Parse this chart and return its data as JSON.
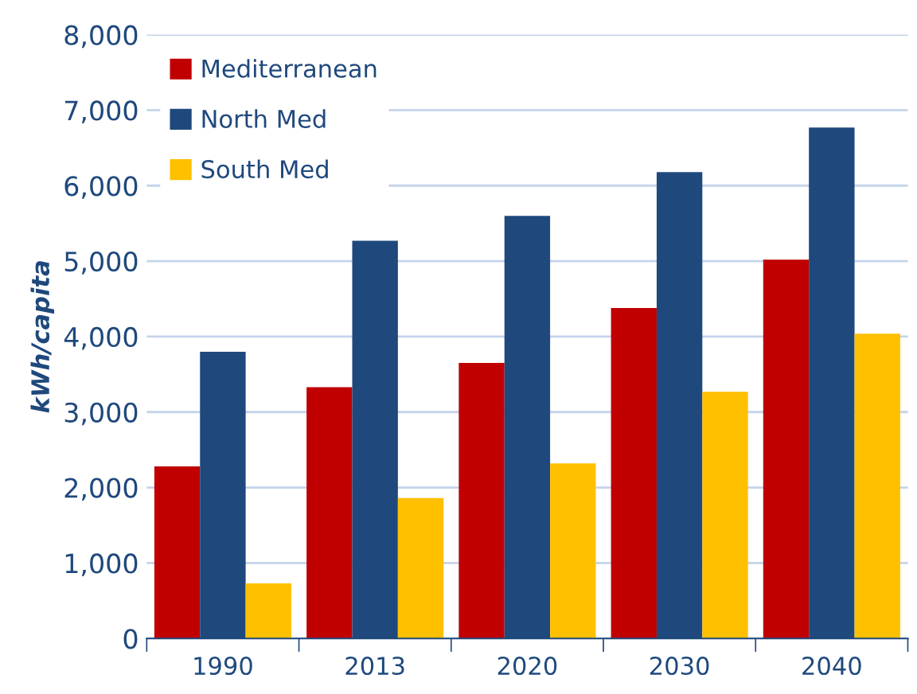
{
  "chart_data": {
    "type": "bar",
    "ylabel": "kWh/capita",
    "categories": [
      "1990",
      "2013",
      "2020",
      "2030",
      "2040"
    ],
    "series": [
      {
        "name": "Mediterranean",
        "color": "#c00000",
        "values": [
          2280,
          3330,
          3650,
          4380,
          5020
        ]
      },
      {
        "name": "North Med",
        "color": "#1f497d",
        "values": [
          3800,
          5270,
          5600,
          6180,
          6770
        ]
      },
      {
        "name": "South Med",
        "color": "#ffc000",
        "values": [
          730,
          1860,
          2320,
          3270,
          4040
        ]
      }
    ],
    "ylim": [
      0,
      8000
    ],
    "yticks": [
      {
        "value": 0,
        "label": "0"
      },
      {
        "value": 1000,
        "label": "1,000"
      },
      {
        "value": 2000,
        "label": "2,000"
      },
      {
        "value": 3000,
        "label": "3,000"
      },
      {
        "value": 4000,
        "label": "4,000"
      },
      {
        "value": 5000,
        "label": "5,000"
      },
      {
        "value": 6000,
        "label": "6,000"
      },
      {
        "value": 7000,
        "label": "7,000"
      },
      {
        "value": 8000,
        "label": "8,000"
      }
    ],
    "grid": "y",
    "legend": "top left"
  }
}
